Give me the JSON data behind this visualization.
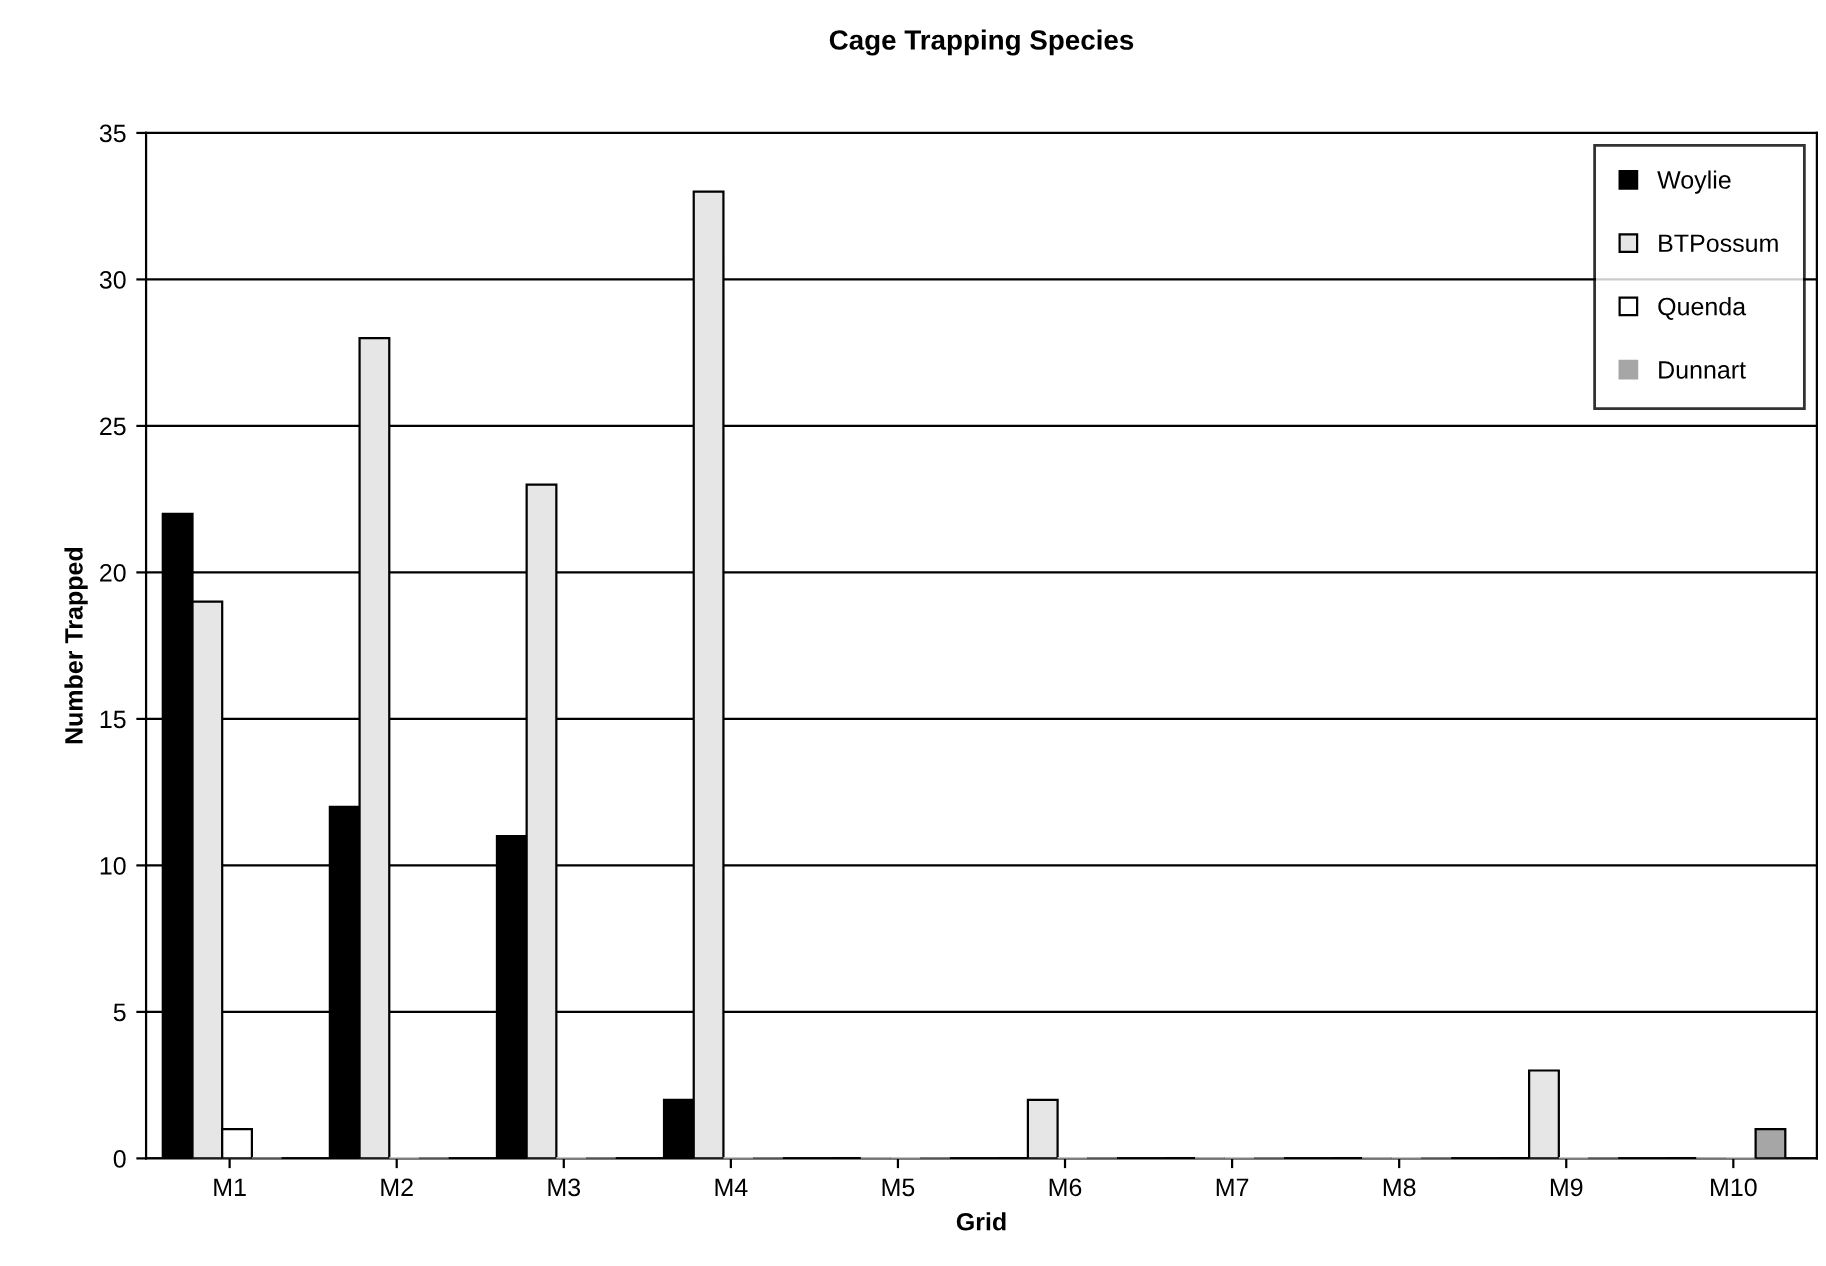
{
  "chart_data": {
    "type": "bar",
    "title": "Cage Trapping Species",
    "xlabel": "Grid",
    "ylabel": "Number Trapped",
    "categories": [
      "M1",
      "M2",
      "M3",
      "M4",
      "M5",
      "M6",
      "M7",
      "M8",
      "M9",
      "M10"
    ],
    "series": [
      {
        "name": "Woylie",
        "color": "#000000",
        "values": [
          22,
          12,
          11,
          2,
          0,
          0,
          0,
          0,
          0,
          0
        ]
      },
      {
        "name": "BTPossum",
        "color": "#e6e6e6",
        "values": [
          19,
          28,
          23,
          33,
          0,
          2,
          0,
          0,
          3,
          0
        ]
      },
      {
        "name": "Quenda",
        "color": "#ffffff",
        "values": [
          1,
          0,
          0,
          0,
          0,
          0,
          0,
          0,
          0,
          0
        ]
      },
      {
        "name": "Dunnart",
        "color": "#a6a6a6",
        "values": [
          0,
          0,
          0,
          0,
          0,
          0,
          0,
          0,
          0,
          1
        ]
      }
    ],
    "ylim": [
      0,
      35
    ],
    "yticks": [
      0,
      5,
      10,
      15,
      20,
      25,
      30,
      35
    ],
    "grid": "y",
    "legend": "top right"
  }
}
